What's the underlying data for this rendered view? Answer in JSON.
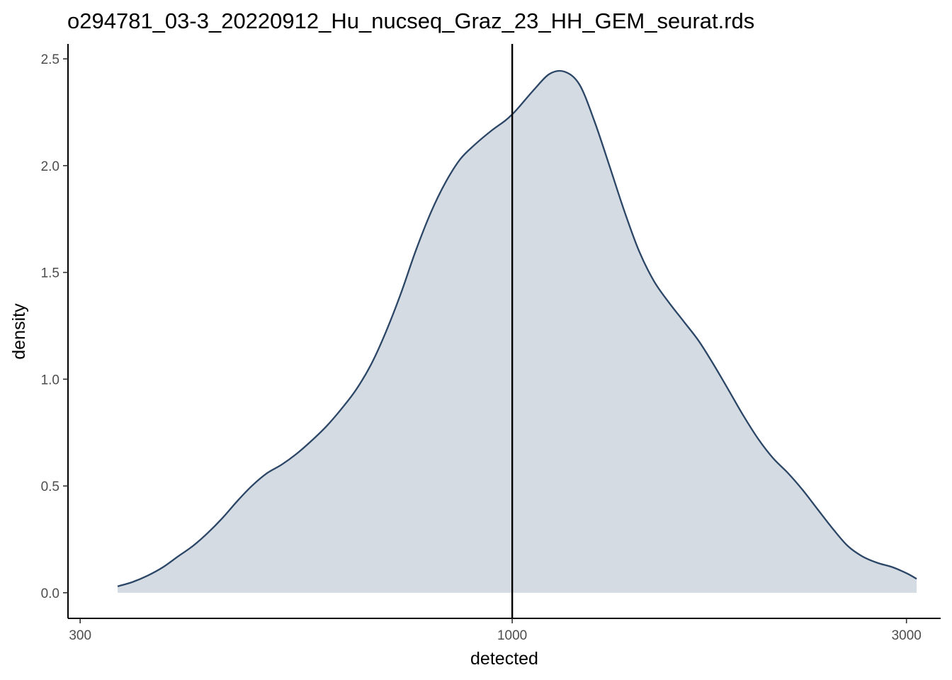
{
  "chart_data": {
    "type": "area",
    "title": "o294781_03-3_20220912_Hu_nucseq_Graz_23_HH_GEM_seurat.rds",
    "xlabel": "detected",
    "ylabel": "density",
    "x_scale": "log10",
    "xlim": [
      290,
      3300
    ],
    "ylim": [
      -0.12,
      2.57
    ],
    "x_ticks": [
      300,
      1000,
      3000
    ],
    "x_tick_labels": [
      "300",
      "1000",
      "3000"
    ],
    "y_ticks": [
      0,
      0.5,
      1,
      1.5,
      2,
      2.5
    ],
    "y_tick_labels": [
      "0.0",
      "0.5",
      "1.0",
      "1.5",
      "2.0",
      "2.5"
    ],
    "vline": {
      "x": 1000
    },
    "grid": false,
    "legend": "none",
    "colors": {
      "line": "#2b4666",
      "fill": "#d4dbe2",
      "vline": "#000000",
      "axis": "#000000"
    },
    "series": [
      {
        "x": [
          333,
          347,
          362,
          378,
          394,
          411,
          428,
          446,
          465,
          484,
          505,
          526,
          548,
          571,
          596,
          621,
          647,
          675,
          703,
          733,
          764,
          797,
          830,
          865,
          902,
          941,
          980,
          1000,
          1022,
          1065,
          1110,
          1157,
          1206,
          1257,
          1311,
          1366,
          1424,
          1484,
          1547,
          1613,
          1681,
          1752,
          1827,
          1904,
          1985,
          2069,
          2157,
          2248,
          2343,
          2443,
          2546,
          2654,
          2767,
          2884,
          3006,
          3086
        ],
        "y": [
          0.03,
          0.05,
          0.08,
          0.12,
          0.17,
          0.22,
          0.28,
          0.35,
          0.43,
          0.5,
          0.56,
          0.6,
          0.65,
          0.71,
          0.78,
          0.86,
          0.95,
          1.07,
          1.22,
          1.4,
          1.6,
          1.78,
          1.92,
          2.03,
          2.1,
          2.16,
          2.21,
          2.24,
          2.28,
          2.36,
          2.43,
          2.44,
          2.38,
          2.21,
          2.0,
          1.79,
          1.6,
          1.46,
          1.36,
          1.27,
          1.18,
          1.07,
          0.95,
          0.83,
          0.72,
          0.63,
          0.56,
          0.48,
          0.39,
          0.3,
          0.22,
          0.17,
          0.14,
          0.12,
          0.09,
          0.065
        ]
      }
    ]
  }
}
